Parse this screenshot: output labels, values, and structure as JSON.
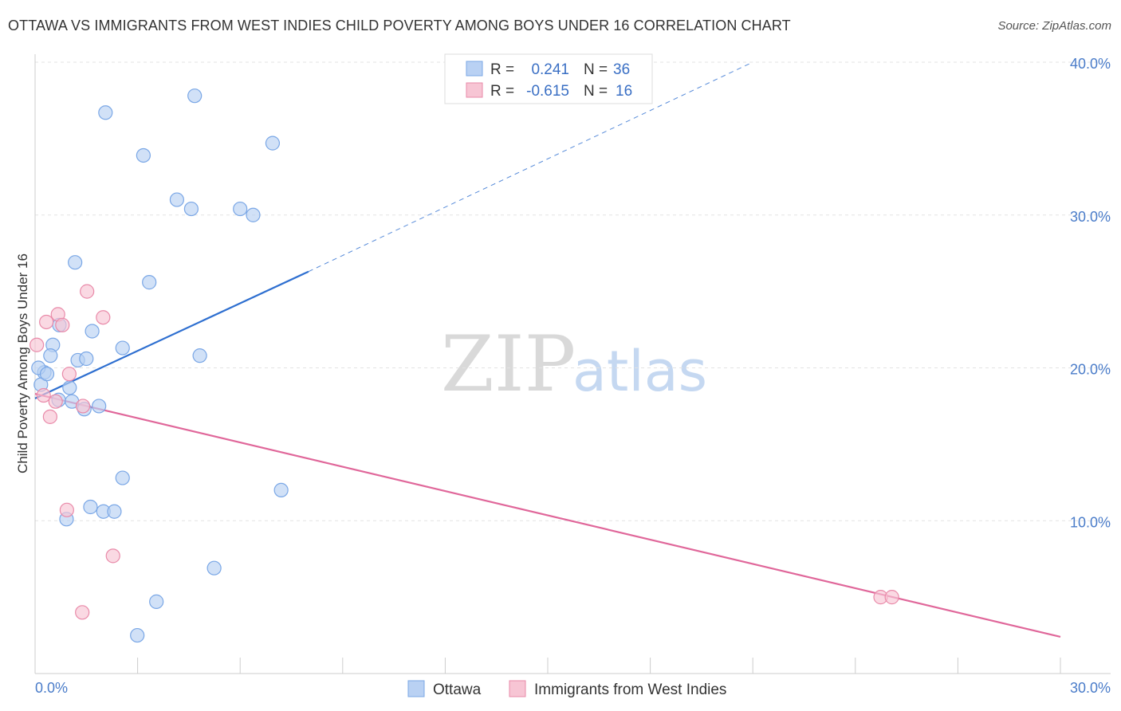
{
  "title": "OTTAWA VS IMMIGRANTS FROM WEST INDIES CHILD POVERTY AMONG BOYS UNDER 16 CORRELATION CHART",
  "source": "Source: ZipAtlas.com",
  "watermark": {
    "zip": "ZIP",
    "atlas": "atlas"
  },
  "colors": {
    "ottawa_fill": "#b9d1f3",
    "ottawa_stroke": "#7aa7e6",
    "ottawa_line": "#2e6fd0",
    "wi_fill": "#f7c5d4",
    "wi_stroke": "#e98aa9",
    "wi_line": "#e0679a",
    "grid": "#e3e3e3",
    "tick_text": "#4a7cc9"
  },
  "legend": {
    "rows": [
      {
        "r_label": "R =",
        "r_value": "0.241",
        "n_label": "N =",
        "n_value": "36"
      },
      {
        "r_label": "R =",
        "r_value": "-0.615",
        "n_label": "N =",
        "n_value": "16"
      }
    ]
  },
  "chart_data": {
    "type": "scatter",
    "title": "OTTAWA VS IMMIGRANTS FROM WEST INDIES CHILD POVERTY AMONG BOYS UNDER 16 CORRELATION CHART",
    "xlabel": "",
    "ylabel": "Child Poverty Among Boys Under 16",
    "xlim": [
      0,
      30
    ],
    "ylim": [
      0,
      40
    ],
    "x_tick_labels": [
      "0.0%",
      "30.0%"
    ],
    "y_ticks": [
      10,
      20,
      30,
      40
    ],
    "y_tick_labels": [
      "10.0%",
      "20.0%",
      "30.0%",
      "40.0%"
    ],
    "grid": true,
    "legend_position": "top-center",
    "series": [
      {
        "name": "Ottawa",
        "R": 0.241,
        "N": 36,
        "points": [
          [
            2.06,
            36.7
          ],
          [
            4.67,
            37.8
          ],
          [
            3.17,
            33.9
          ],
          [
            6.95,
            34.7
          ],
          [
            4.15,
            31.0
          ],
          [
            4.57,
            30.4
          ],
          [
            6.0,
            30.4
          ],
          [
            6.38,
            30.0
          ],
          [
            1.17,
            26.9
          ],
          [
            3.34,
            25.6
          ],
          [
            1.67,
            22.4
          ],
          [
            0.71,
            22.8
          ],
          [
            0.52,
            21.5
          ],
          [
            2.56,
            21.3
          ],
          [
            0.45,
            20.8
          ],
          [
            1.25,
            20.5
          ],
          [
            1.5,
            20.6
          ],
          [
            4.82,
            20.8
          ],
          [
            0.27,
            19.7
          ],
          [
            0.17,
            18.9
          ],
          [
            1.01,
            18.7
          ],
          [
            0.69,
            17.9
          ],
          [
            1.08,
            17.8
          ],
          [
            1.87,
            17.5
          ],
          [
            1.44,
            17.3
          ],
          [
            2.56,
            12.8
          ],
          [
            7.2,
            12.0
          ],
          [
            1.62,
            10.9
          ],
          [
            2.0,
            10.6
          ],
          [
            2.32,
            10.6
          ],
          [
            0.92,
            10.1
          ],
          [
            5.24,
            6.9
          ],
          [
            3.55,
            4.7
          ],
          [
            2.99,
            2.5
          ],
          [
            0.1,
            20.0
          ],
          [
            0.35,
            19.6
          ]
        ],
        "trend": {
          "x0": 0,
          "y0": 18.0,
          "x1": 8.0,
          "y1": 26.3,
          "dashed_x1": 21.0,
          "dashed_y1": 40.0
        }
      },
      {
        "name": "Immigrants from West Indies",
        "R": -0.615,
        "N": 16,
        "points": [
          [
            0.05,
            21.5
          ],
          [
            1.52,
            25.0
          ],
          [
            0.67,
            23.5
          ],
          [
            1.99,
            23.3
          ],
          [
            0.33,
            23.0
          ],
          [
            0.8,
            22.8
          ],
          [
            1.0,
            19.6
          ],
          [
            0.25,
            18.2
          ],
          [
            0.6,
            17.8
          ],
          [
            1.4,
            17.5
          ],
          [
            0.44,
            16.8
          ],
          [
            0.93,
            10.7
          ],
          [
            2.28,
            7.7
          ],
          [
            1.38,
            4.0
          ],
          [
            24.74,
            5.0
          ],
          [
            25.07,
            5.0
          ]
        ],
        "trend": {
          "x0": 0,
          "y0": 18.3,
          "x1": 30,
          "y1": 2.4
        }
      }
    ]
  }
}
